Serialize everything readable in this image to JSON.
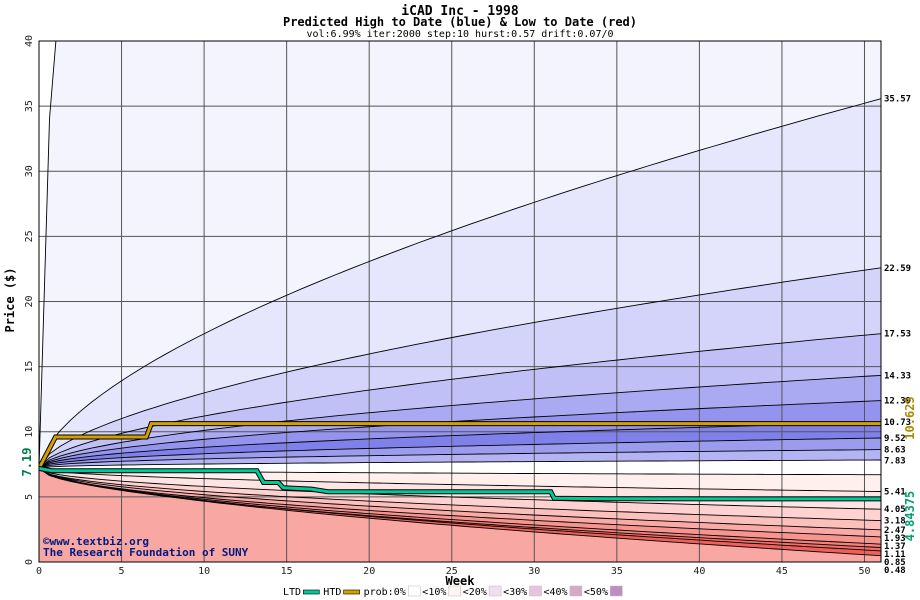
{
  "chart_data": {
    "type": "area",
    "title": "iCAD Inc - 1998",
    "subtitle": "Predicted High to Date (blue) &  Low to Date (red)",
    "params": "vol:6.99% iter:2000 step:10 hurst:0.57 drift:0.07/0",
    "xlabel": "Week",
    "ylabel": "Price ($)",
    "xlim": [
      0,
      51
    ],
    "ylim": [
      0,
      40
    ],
    "x_ticks": [
      0,
      5,
      10,
      15,
      20,
      25,
      30,
      35,
      40,
      45,
      50
    ],
    "y_ticks": [
      0,
      5,
      10,
      15,
      20,
      25,
      30,
      35,
      40
    ],
    "grid": true,
    "start_price": 7.19,
    "start_label": "7.19",
    "watermark": [
      "©www.textbiz.org",
      "The Research Foundation of SUNY"
    ],
    "high_end_labels": [
      "35.57",
      "22.59",
      "17.53",
      "14.33",
      "12.39",
      "10.73",
      "9.52",
      "8.63",
      "7.83"
    ],
    "low_end_labels": [
      "5.41",
      "4.05",
      "3.18",
      "2.47",
      "1.93",
      "1.37",
      "1.11",
      "0.85",
      "0.48"
    ],
    "high_percentile_curves": [
      {
        "end": 200,
        "shape": 0.45
      },
      {
        "end": 35.57,
        "shape": 0.62
      },
      {
        "end": 22.59,
        "shape": 0.6
      },
      {
        "end": 17.53,
        "shape": 0.58
      },
      {
        "end": 14.33,
        "shape": 0.55
      },
      {
        "end": 12.39,
        "shape": 0.52
      },
      {
        "end": 10.73,
        "shape": 0.48
      },
      {
        "end": 9.52,
        "shape": 0.45
      },
      {
        "end": 8.63,
        "shape": 0.42
      },
      {
        "end": 7.83,
        "shape": 0.4
      }
    ],
    "low_percentile_curves": [
      {
        "end": 6.7,
        "shape": 0.4
      },
      {
        "end": 5.41,
        "shape": 0.5
      },
      {
        "end": 4.05,
        "shape": 0.5
      },
      {
        "end": 3.18,
        "shape": 0.5
      },
      {
        "end": 2.47,
        "shape": 0.52
      },
      {
        "end": 1.93,
        "shape": 0.52
      },
      {
        "end": 1.37,
        "shape": 0.55
      },
      {
        "end": 1.11,
        "shape": 0.55
      },
      {
        "end": 0.85,
        "shape": 0.58
      },
      {
        "end": 0.48,
        "shape": 0.6
      }
    ],
    "bands_fill_high": [
      "#f4f4ff",
      "#e6e6fc",
      "#d4d4fa",
      "#c0c0f6",
      "#aaaaf2",
      "#9494ee",
      "#8080ea",
      "#9c9cee",
      "#b4b4f4",
      "#cccdf8"
    ],
    "bands_fill_low": [
      "#fff0ee",
      "#fee4e2",
      "#fdd2d0",
      "#fcc0bc",
      "#faaaa6",
      "#f8948f",
      "#f6807a",
      "#f46e68",
      "#f25e58"
    ],
    "htd": {
      "name": "HTD",
      "color": "#d4a000",
      "final": 10.625,
      "final_label": "10.625",
      "points": [
        [
          0,
          7.19
        ],
        [
          1,
          9.6
        ],
        [
          6.5,
          9.6
        ],
        [
          6.8,
          10.625
        ],
        [
          51,
          10.625
        ]
      ]
    },
    "ltd": {
      "name": "LTD",
      "color": "#00c898",
      "final": 4.84375,
      "final_label": "4.84375",
      "points": [
        [
          0,
          7.19
        ],
        [
          0.8,
          7.0
        ],
        [
          13.2,
          7.0
        ],
        [
          13.6,
          6.1
        ],
        [
          14.5,
          6.1
        ],
        [
          14.8,
          5.7
        ],
        [
          16.5,
          5.6
        ],
        [
          17.5,
          5.4
        ],
        [
          31,
          5.4
        ],
        [
          31.2,
          4.9
        ],
        [
          34.5,
          4.85
        ],
        [
          51,
          4.84375
        ]
      ]
    }
  },
  "legend": [
    {
      "label": "LTD",
      "kind": "line",
      "color": "#00c898"
    },
    {
      "label": "HTD",
      "kind": "line",
      "color": "#d4a000"
    },
    {
      "label": "prob:0%",
      "kind": "text"
    },
    {
      "label": "<10%",
      "kind": "swatch",
      "color": "#fff4f2"
    },
    {
      "label": "<20%",
      "kind": "swatch",
      "color": "#f0ddee"
    },
    {
      "label": "<30%",
      "kind": "swatch",
      "color": "#e8c4dc"
    },
    {
      "label": "<40%",
      "kind": "swatch",
      "color": "#d8a8c8"
    },
    {
      "label": "<50%",
      "kind": "swatch",
      "color": "#c08cc4"
    }
  ]
}
